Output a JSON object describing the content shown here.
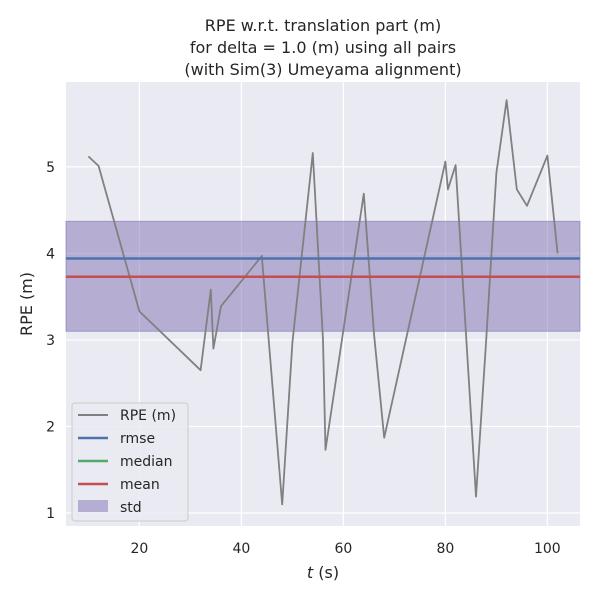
{
  "chart_data": {
    "type": "line",
    "title_lines": [
      "RPE w.r.t. translation part (m)",
      "for delta = 1.0 (m) using all pairs",
      "(with Sim(3) Umeyama alignment)"
    ],
    "xlabel_var": "t",
    "xlabel_unit": " (s)",
    "ylabel": "RPE (m)",
    "xlim": [
      5.6,
      106.4
    ],
    "ylim": [
      0.85,
      5.98
    ],
    "xticks": [
      20,
      40,
      60,
      80,
      100
    ],
    "yticks": [
      1,
      2,
      3,
      4,
      5
    ],
    "grid": true,
    "legend_position": "lower-left",
    "series": [
      {
        "name": "RPE (m)",
        "color": "#808080",
        "x": [
          10,
          12,
          20,
          32,
          34,
          34.5,
          36,
          44,
          48,
          50,
          54,
          56,
          56.5,
          64,
          66,
          68,
          80,
          80.5,
          82,
          86,
          88,
          90,
          92,
          94,
          96,
          100,
          102
        ],
        "y": [
          5.12,
          5.01,
          3.33,
          2.65,
          3.58,
          2.9,
          3.39,
          3.97,
          1.1,
          2.97,
          5.16,
          3.0,
          1.73,
          4.69,
          3.07,
          1.87,
          5.06,
          4.74,
          5.02,
          1.19,
          3.0,
          4.93,
          5.77,
          4.74,
          4.55,
          5.13,
          4.0
        ]
      }
    ],
    "stats": {
      "rmse": {
        "name": "rmse",
        "value": 3.94,
        "color": "#4c72b0"
      },
      "median": {
        "name": "median",
        "value": 3.73,
        "color": "#55a868"
      },
      "mean": {
        "name": "mean",
        "value": 3.73,
        "color": "#c44e52"
      },
      "std": {
        "name": "std",
        "lower": 3.1,
        "upper": 4.37,
        "color": "#8172b2"
      }
    }
  }
}
